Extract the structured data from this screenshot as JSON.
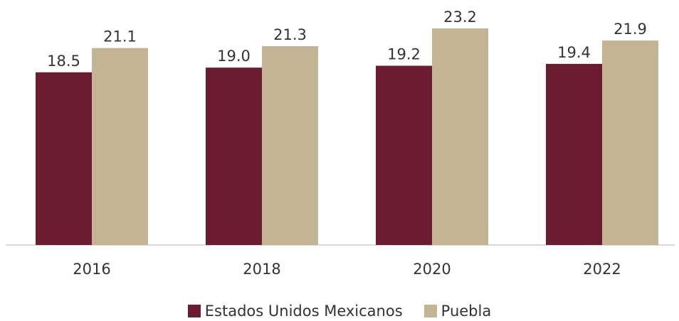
{
  "chart_data": {
    "type": "bar",
    "categories": [
      "2016",
      "2018",
      "2020",
      "2022"
    ],
    "series": [
      {
        "name": "Estados Unidos Mexicanos",
        "color": "#6b1c30",
        "values": [
          18.5,
          19.0,
          19.2,
          19.4
        ],
        "labels": [
          "18.5",
          "19.0",
          "19.2",
          "19.4"
        ]
      },
      {
        "name": "Puebla",
        "color": "#c3b593",
        "values": [
          21.1,
          21.3,
          23.2,
          21.9
        ],
        "labels": [
          "21.1",
          "21.3",
          "23.2",
          "21.9"
        ]
      }
    ],
    "ylim": [
      0,
      23.2
    ],
    "grid": false,
    "legend_position": "bottom",
    "axis_color": "#d9d9d9"
  }
}
